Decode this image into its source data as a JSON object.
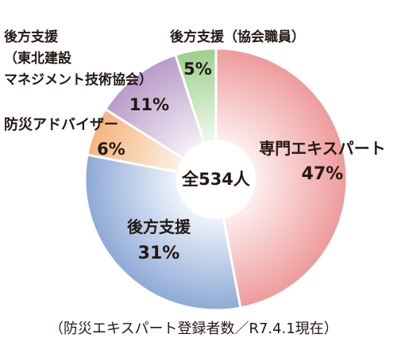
{
  "chart_data": {
    "type": "pie",
    "total_label": "全534人",
    "note": "（防災エキスパート登録者数／R7.4.1現在）",
    "slices": [
      {
        "label_lines": [
          "専門エキスパート"
        ],
        "percent_label": "47%",
        "value": 47,
        "color_edge": "#ee9a9b",
        "color_inner": "#fdeeee"
      },
      {
        "label_lines": [
          "後方支援"
        ],
        "percent_label": "31%",
        "value": 31,
        "color_edge": "#8ea9d6",
        "color_inner": "#eef3fb"
      },
      {
        "label_lines": [
          "防災アドバイザー"
        ],
        "percent_label": "6%",
        "value": 6,
        "color_edge": "#f3b47c",
        "color_inner": "#fdf0e4"
      },
      {
        "label_lines": [
          "後方支援",
          "（東北建設",
          "マネジメント技術協会）"
        ],
        "percent_label": "11%",
        "value": 11,
        "color_edge": "#b99ac8",
        "color_inner": "#f3eef7"
      },
      {
        "label_lines": [
          "後方支援（協会職員）"
        ],
        "percent_label": "5%",
        "value": 5,
        "color_edge": "#9ccf8c",
        "color_inner": "#eef8ea"
      }
    ]
  }
}
